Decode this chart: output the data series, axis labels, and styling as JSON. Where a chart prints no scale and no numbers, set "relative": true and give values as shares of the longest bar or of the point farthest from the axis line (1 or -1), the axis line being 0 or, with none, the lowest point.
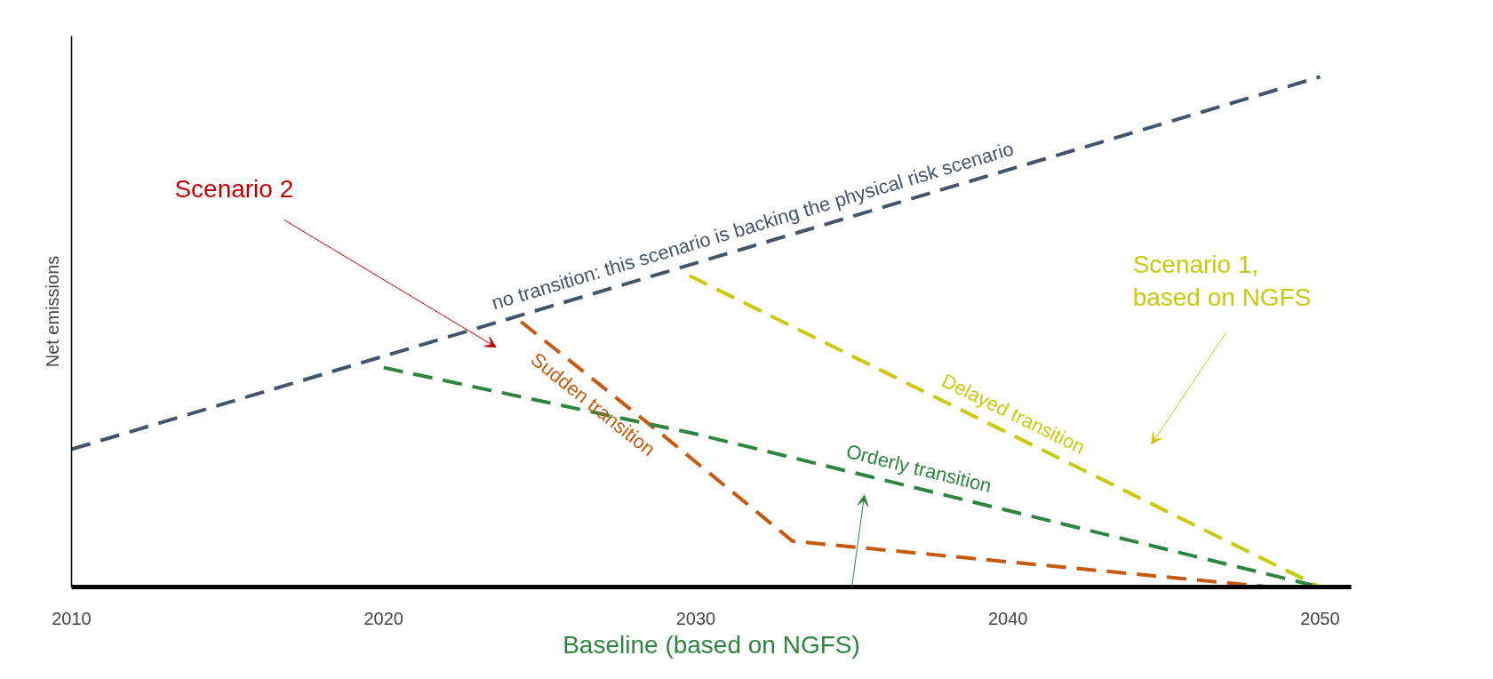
{
  "chart_data": {
    "type": "line",
    "relative": true,
    "ylabel": "Net emissions",
    "xlim": [
      2010,
      2051
    ],
    "xticks": [
      2010,
      2020,
      2030,
      2040,
      2050
    ],
    "grid": false,
    "marker": "none",
    "line_style": "dashed",
    "series": [
      {
        "name": "no transition: this scenario is backing the physical risk scenario",
        "color": "#44546a",
        "x": [
          2010,
          2050
        ],
        "values": [
          0.27,
          1.0
        ]
      },
      {
        "name": "Sudden transition",
        "color": "#c55a11",
        "x": [
          2024.4,
          2028.9,
          2033.1,
          2048.4
        ],
        "values": [
          0.52,
          0.3,
          0.09,
          0
        ]
      },
      {
        "name": "Orderly transition",
        "color": "#2e8540",
        "x": [
          2020,
          2030,
          2050
        ],
        "values": [
          0.43,
          0.3,
          0
        ]
      },
      {
        "name": "Delayed transition",
        "color": "#c9c90e",
        "x": [
          2029.8,
          2050
        ],
        "values": [
          0.61,
          0
        ]
      }
    ],
    "annotations": [
      "Scenario 2",
      "Scenario 1, based on NGFS",
      "Baseline (based on NGFS)"
    ]
  }
}
